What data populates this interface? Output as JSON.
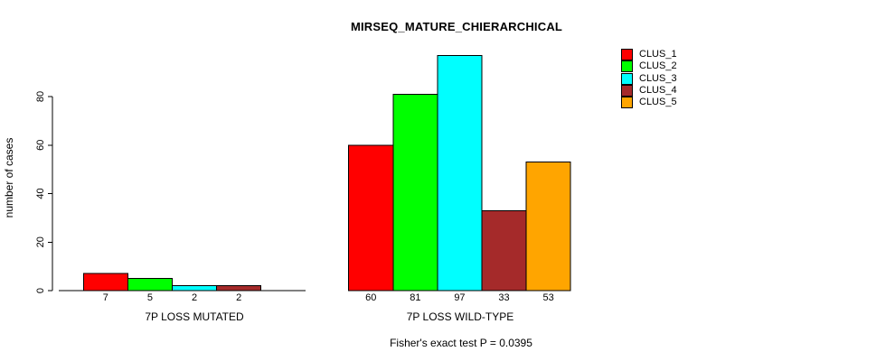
{
  "chart_data": {
    "type": "bar",
    "title": "MIRSEQ_MATURE_CHIERARCHICAL",
    "ylabel": "number of cases",
    "xlabel": "",
    "ylim": [
      0,
      80
    ],
    "yticks": [
      0,
      20,
      40,
      60,
      80
    ],
    "grid": false,
    "legend_position": "right",
    "series": [
      {
        "name": "CLUS_1",
        "color": "#FF0000"
      },
      {
        "name": "CLUS_2",
        "color": "#00FF00"
      },
      {
        "name": "CLUS_3",
        "color": "#00FFFF"
      },
      {
        "name": "CLUS_4",
        "color": "#A52A2A"
      },
      {
        "name": "CLUS_5",
        "color": "#FFA500"
      }
    ],
    "groups": [
      {
        "label": "7P LOSS MUTATED",
        "values": [
          7,
          5,
          2,
          2,
          0
        ],
        "value_labels": [
          "7",
          "5",
          "2",
          "2",
          ""
        ]
      },
      {
        "label": "7P LOSS WILD-TYPE",
        "values": [
          60,
          81,
          97,
          33,
          53
        ],
        "value_labels": [
          "60",
          "81",
          "97",
          "33",
          "53"
        ]
      }
    ],
    "footnote": "Fisher's exact test P = 0.0395"
  }
}
